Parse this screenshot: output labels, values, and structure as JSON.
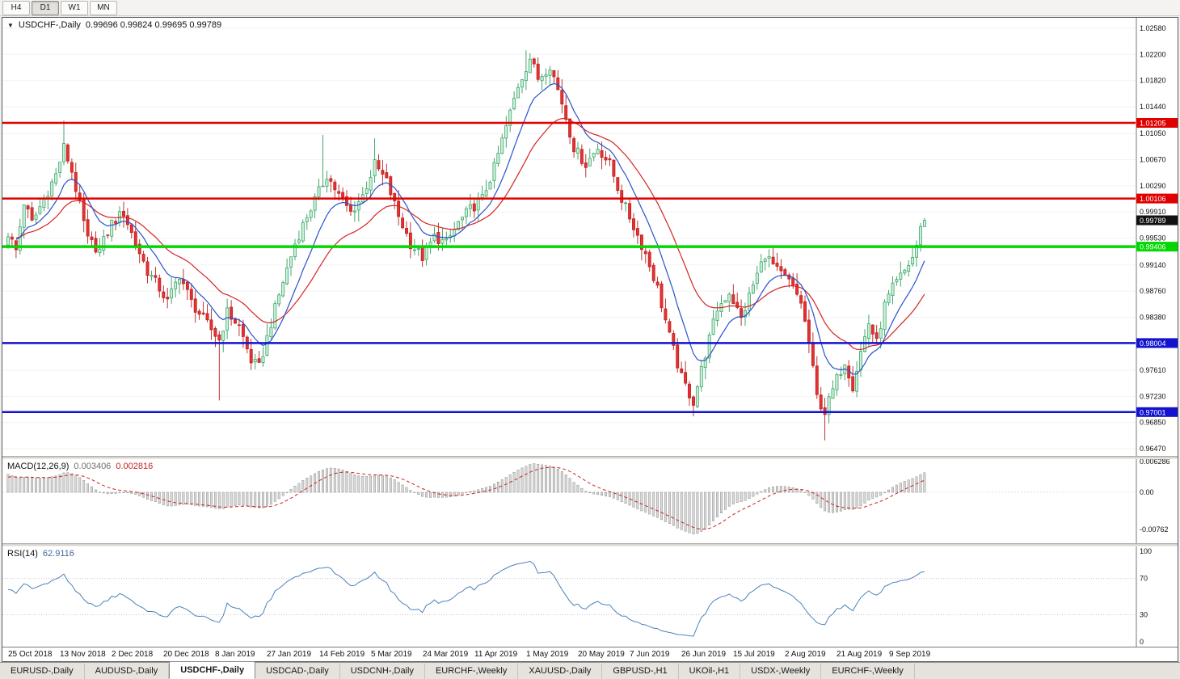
{
  "toolbar": {
    "timeframes": [
      {
        "label": "H4",
        "active": false
      },
      {
        "label": "D1",
        "active": true
      },
      {
        "label": "W1",
        "active": false
      },
      {
        "label": "MN",
        "active": false
      }
    ]
  },
  "header": {
    "dropdown_icon": "▼",
    "symbol_title": "USDCHF-,Daily",
    "ohlc": "0.99696 0.99824 0.99695 0.99789"
  },
  "macd_panel": {
    "title": "MACD(12,26,9)",
    "main_value": "0.003406",
    "signal_value": "0.002816"
  },
  "rsi_panel": {
    "title": "RSI(14)",
    "value": "62.9116"
  },
  "tabs": [
    {
      "label": "EURUSD-,Daily",
      "active": false
    },
    {
      "label": "AUDUSD-,Daily",
      "active": false
    },
    {
      "label": "USDCHF-,Daily",
      "active": true
    },
    {
      "label": "USDCAD-,Daily",
      "active": false
    },
    {
      "label": "USDCNH-,Daily",
      "active": false
    },
    {
      "label": "EURCHF-,Weekly",
      "active": false
    },
    {
      "label": "XAUUSD-,Daily",
      "active": false
    },
    {
      "label": "GBPUSD-,H1",
      "active": false
    },
    {
      "label": "UKOil-,H1",
      "active": false
    },
    {
      "label": "USDX-,Weekly",
      "active": false
    },
    {
      "label": "EURCHF-,Weekly",
      "active": false
    }
  ],
  "colors": {
    "bull_fill": "#c9efd8",
    "bull_stroke": "#2f9e5f",
    "bear_fill": "#e53131",
    "bear_stroke": "#b81d1d",
    "ma_fast": "#2952cc",
    "ma_slow": "#d42424",
    "macd_hist_fill": "#d9d9d9",
    "macd_hist_stroke": "#8c8c8c",
    "macd_signal": "#cc2222",
    "rsi_line": "#4d82b8",
    "level_red": "#e00000",
    "level_green": "#00d800",
    "level_blue": "#1212cf",
    "grid": "#f2f2f2",
    "axis_line": "#7a7a7a",
    "current_badge": "#111111"
  },
  "chart_data": {
    "type": "candlestick",
    "symbol": "USDCHF-",
    "timeframe": "Daily",
    "last_ohlc": {
      "open": 0.99696,
      "high": 0.99824,
      "low": 0.99695,
      "close": 0.99789
    },
    "candle_count": 231,
    "close_waypoints": [
      [
        0,
        0.996
      ],
      [
        2,
        0.9935
      ],
      [
        4,
        1.0005
      ],
      [
        6,
        0.9975
      ],
      [
        9,
        1.001
      ],
      [
        12,
        1.0045
      ],
      [
        14,
        1.0085
      ],
      [
        16,
        1.005
      ],
      [
        18,
        1.0
      ],
      [
        20,
        0.995
      ],
      [
        23,
        0.9935
      ],
      [
        26,
        0.9975
      ],
      [
        29,
        0.999
      ],
      [
        32,
        0.9945
      ],
      [
        35,
        0.9905
      ],
      [
        38,
        0.988
      ],
      [
        40,
        0.986
      ],
      [
        43,
        0.99
      ],
      [
        46,
        0.986
      ],
      [
        49,
        0.9835
      ],
      [
        53,
        0.9805
      ],
      [
        55,
        0.9845
      ],
      [
        58,
        0.9825
      ],
      [
        61,
        0.9775
      ],
      [
        63,
        0.9765
      ],
      [
        66,
        0.983
      ],
      [
        69,
        0.989
      ],
      [
        72,
        0.9945
      ],
      [
        75,
        0.9985
      ],
      [
        78,
        1.002
      ],
      [
        80,
        1.0045
      ],
      [
        83,
        1.0015
      ],
      [
        86,
        0.999
      ],
      [
        89,
        1.0015
      ],
      [
        92,
        1.006
      ],
      [
        95,
        1.0035
      ],
      [
        98,
        0.9985
      ],
      [
        101,
        0.9945
      ],
      [
        104,
        0.9925
      ],
      [
        107,
        0.9955
      ],
      [
        110,
        0.9945
      ],
      [
        113,
        0.9975
      ],
      [
        116,
        0.9995
      ],
      [
        119,
        1.001
      ],
      [
        122,
        1.0055
      ],
      [
        125,
        1.0115
      ],
      [
        128,
        1.0175
      ],
      [
        131,
        1.0215
      ],
      [
        133,
        1.0185
      ],
      [
        136,
        1.0205
      ],
      [
        139,
        1.015
      ],
      [
        142,
        1.0085
      ],
      [
        145,
        1.006
      ],
      [
        148,
        1.0085
      ],
      [
        151,
        1.006
      ],
      [
        154,
        1.001
      ],
      [
        157,
        0.997
      ],
      [
        160,
        0.993
      ],
      [
        163,
        0.988
      ],
      [
        166,
        0.981
      ],
      [
        169,
        0.975
      ],
      [
        172,
        0.9715
      ],
      [
        175,
        0.9785
      ],
      [
        178,
        0.985
      ],
      [
        181,
        0.9875
      ],
      [
        184,
        0.9835
      ],
      [
        187,
        0.9885
      ],
      [
        190,
        0.993
      ],
      [
        193,
        0.9905
      ],
      [
        196,
        0.989
      ],
      [
        199,
        0.986
      ],
      [
        201,
        0.98
      ],
      [
        203,
        0.9722
      ],
      [
        205,
        0.97
      ],
      [
        208,
        0.9748
      ],
      [
        210,
        0.9775
      ],
      [
        212,
        0.9738
      ],
      [
        214,
        0.9788
      ],
      [
        216,
        0.983
      ],
      [
        218,
        0.98
      ],
      [
        220,
        0.9855
      ],
      [
        222,
        0.988
      ],
      [
        225,
        0.9905
      ],
      [
        227,
        0.9925
      ],
      [
        230,
        0.9979
      ]
    ],
    "wick_spikes": [
      {
        "day": 14,
        "high": 1.0124
      },
      {
        "day": 53,
        "low": 0.9717
      },
      {
        "day": 79,
        "high": 1.0103
      },
      {
        "day": 92,
        "high": 1.0098
      },
      {
        "day": 130,
        "high": 1.0226
      },
      {
        "day": 131,
        "high": 1.0222
      },
      {
        "day": 172,
        "low": 0.9694
      },
      {
        "day": 205,
        "low": 0.9659
      }
    ],
    "moving_averages": [
      {
        "name": "fast-ma",
        "period": 10,
        "color_key": "ma_fast"
      },
      {
        "name": "slow-ma",
        "period": 25,
        "color_key": "ma_slow"
      }
    ],
    "levels": [
      {
        "value": 1.01205,
        "label": "1.01205",
        "color_key": "level_red",
        "thickness": 2.5
      },
      {
        "value": 1.00106,
        "label": "1.00106",
        "color_key": "level_red",
        "thickness": 2.5
      },
      {
        "value": 0.99406,
        "label": "0.99406",
        "color_key": "level_green",
        "thickness": 3.5
      },
      {
        "value": 0.98004,
        "label": "0.98004",
        "color_key": "level_blue",
        "thickness": 2.5
      },
      {
        "value": 0.97001,
        "label": "0.97001",
        "color_key": "level_blue",
        "thickness": 2.5
      }
    ],
    "current_price": {
      "value": 0.99789,
      "label": "0.99789"
    },
    "price_axis": {
      "min": 0.9647,
      "max": 1.0258,
      "ticks": [
        "1.02580",
        "1.02200",
        "1.01820",
        "1.01440",
        "1.01050",
        "1.00670",
        "1.00290",
        "0.99910",
        "0.99530",
        "0.99140",
        "0.98760",
        "0.98380",
        "0.97610",
        "0.97230",
        "0.96850",
        "0.96470"
      ]
    },
    "dates": [
      "25 Oct 2018",
      "13 Nov 2018",
      "2 Dec 2018",
      "20 Dec 2018",
      "8 Jan 2019",
      "27 Jan 2019",
      "14 Feb 2019",
      "5 Mar 2019",
      "24 Mar 2019",
      "11 Apr 2019",
      "1 May 2019",
      "20 May 2019",
      "7 Jun 2019",
      "26 Jun 2019",
      "15 Jul 2019",
      "2 Aug 2019",
      "21 Aug 2019",
      "9 Sep 2019"
    ],
    "macd": {
      "fast": 12,
      "slow": 26,
      "signal": 9,
      "last_values": [
        0.003406,
        0.002816
      ],
      "axis_ticks": [
        {
          "label": "0.006286",
          "value": 0.006286
        },
        {
          "label": "0.00",
          "value": 0
        },
        {
          "label": "-0.00762",
          "value": -0.00762
        }
      ]
    },
    "rsi": {
      "period": 14,
      "last_value": 62.9116,
      "overbought": 70,
      "oversold": 30,
      "axis_ticks": [
        {
          "label": "100",
          "value": 100
        },
        {
          "label": "70",
          "value": 70
        },
        {
          "label": "30",
          "value": 30
        },
        {
          "label": "0",
          "value": 0
        }
      ]
    }
  }
}
